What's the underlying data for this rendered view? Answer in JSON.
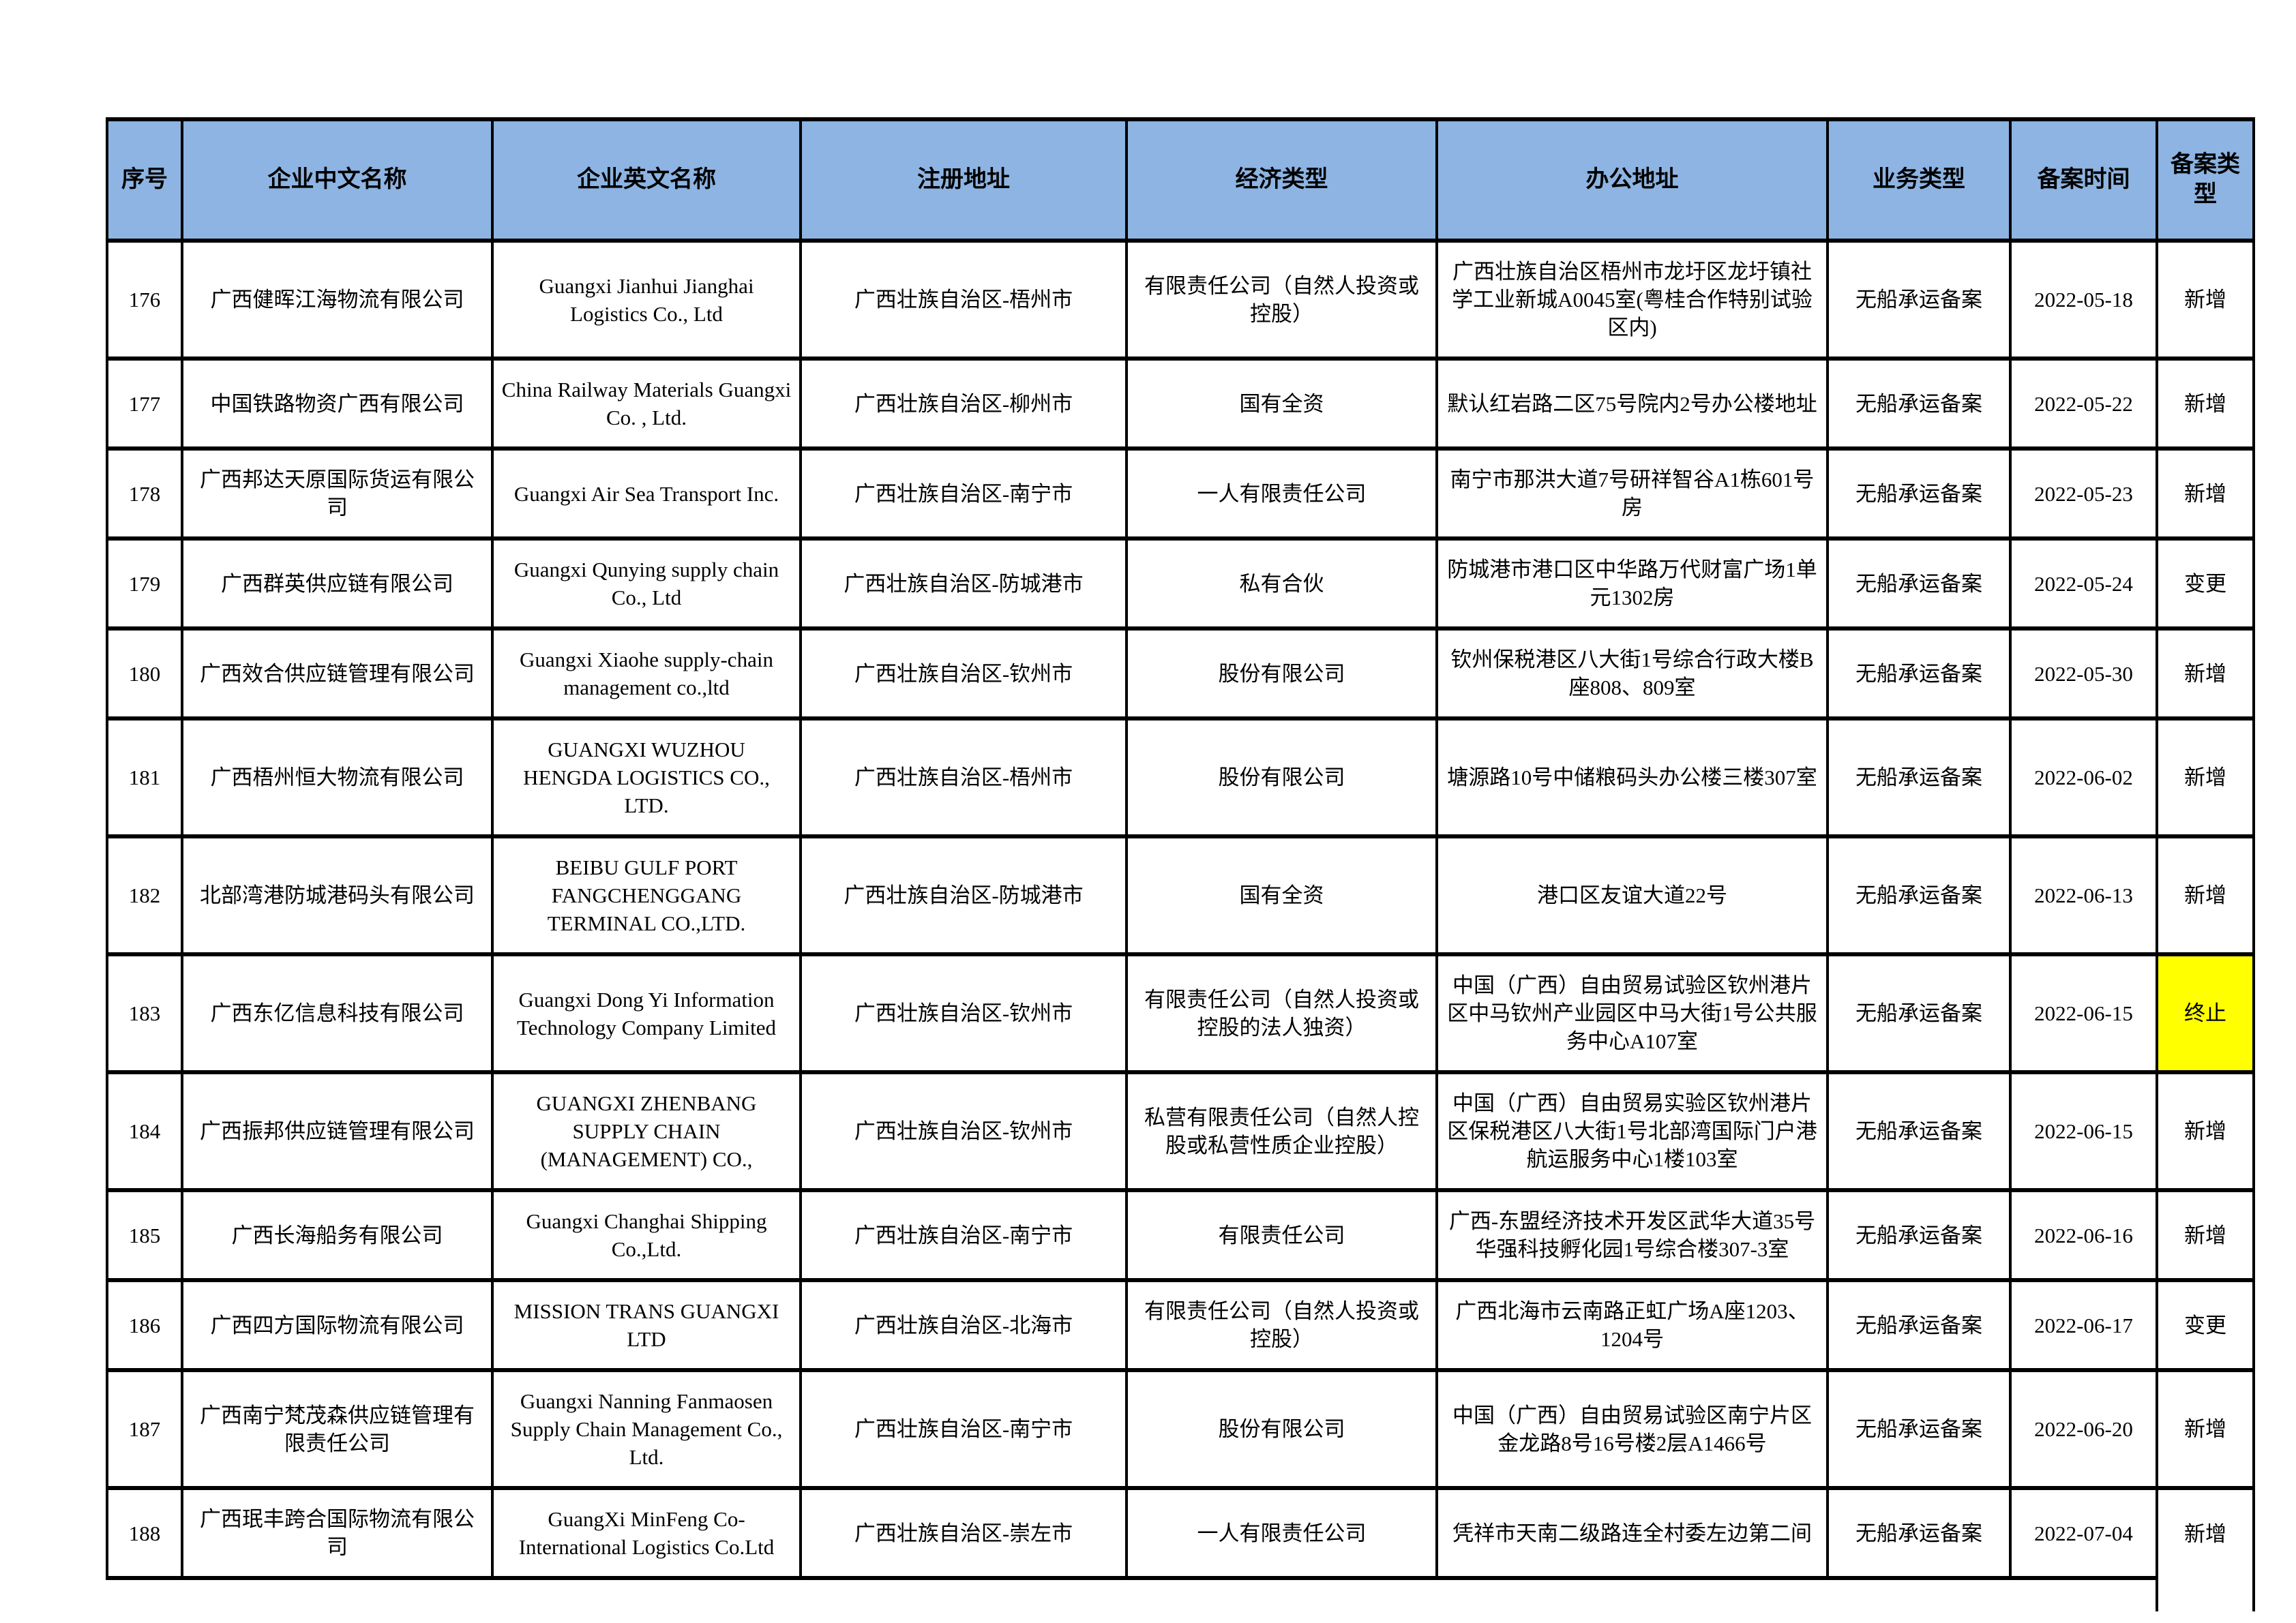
{
  "table": {
    "header_bg": "#8db4e2",
    "highlight_bg": "#ffff00",
    "columns": [
      "序号",
      "企业中文名称",
      "企业英文名称",
      "注册地址",
      "经济类型",
      "办公地址",
      "业务类型",
      "备案时间",
      "备案类型"
    ],
    "rows": [
      {
        "no": "176",
        "name_cn": "广西健晖江海物流有限公司",
        "name_en": "Guangxi Jianhui Jianghai Logistics Co., Ltd",
        "reg_address": "广西壮族自治区-梧州市",
        "econ_type": "有限责任公司（自然人投资或控股）",
        "office_address": "广西壮族自治区梧州市龙圩区龙圩镇社学工业新城A0045室(粤桂合作特别试验区内)",
        "biz_type": "无船承运备案",
        "filing_date": "2022-05-18",
        "filing_type": "新增",
        "highlight": false
      },
      {
        "no": "177",
        "name_cn": "中国铁路物资广西有限公司",
        "name_en": "China Railway Materials Guangxi Co. , Ltd.",
        "reg_address": "广西壮族自治区-柳州市",
        "econ_type": "国有全资",
        "office_address": "默认红岩路二区75号院内2号办公楼地址",
        "biz_type": "无船承运备案",
        "filing_date": "2022-05-22",
        "filing_type": "新增",
        "highlight": false
      },
      {
        "no": "178",
        "name_cn": "广西邦达天原国际货运有限公司",
        "name_en": "Guangxi Air Sea Transport Inc.",
        "reg_address": "广西壮族自治区-南宁市",
        "econ_type": "一人有限责任公司",
        "office_address": "南宁市那洪大道7号研祥智谷A1栋601号房",
        "biz_type": "无船承运备案",
        "filing_date": "2022-05-23",
        "filing_type": "新增",
        "highlight": false
      },
      {
        "no": "179",
        "name_cn": "广西群英供应链有限公司",
        "name_en": "Guangxi Qunying supply chain Co., Ltd",
        "reg_address": "广西壮族自治区-防城港市",
        "econ_type": "私有合伙",
        "office_address": "防城港市港口区中华路万代财富广场1单元1302房",
        "biz_type": "无船承运备案",
        "filing_date": "2022-05-24",
        "filing_type": "变更",
        "highlight": false
      },
      {
        "no": "180",
        "name_cn": "广西效合供应链管理有限公司",
        "name_en": "Guangxi Xiaohe supply-chain management co.,ltd",
        "reg_address": "广西壮族自治区-钦州市",
        "econ_type": "股份有限公司",
        "office_address": "钦州保税港区八大街1号综合行政大楼B座808、809室",
        "biz_type": "无船承运备案",
        "filing_date": "2022-05-30",
        "filing_type": "新增",
        "highlight": false
      },
      {
        "no": "181",
        "name_cn": "广西梧州恒大物流有限公司",
        "name_en": "GUANGXI WUZHOU HENGDA LOGISTICS CO., LTD.",
        "reg_address": "广西壮族自治区-梧州市",
        "econ_type": "股份有限公司",
        "office_address": "塘源路10号中储粮码头办公楼三楼307室",
        "biz_type": "无船承运备案",
        "filing_date": "2022-06-02",
        "filing_type": "新增",
        "highlight": false
      },
      {
        "no": "182",
        "name_cn": "北部湾港防城港码头有限公司",
        "name_en": "BEIBU GULF PORT FANGCHENGGANG TERMINAL CO.,LTD.",
        "reg_address": "广西壮族自治区-防城港市",
        "econ_type": "国有全资",
        "office_address": "港口区友谊大道22号",
        "biz_type": "无船承运备案",
        "filing_date": "2022-06-13",
        "filing_type": "新增",
        "highlight": false
      },
      {
        "no": "183",
        "name_cn": "广西东亿信息科技有限公司",
        "name_en": "Guangxi Dong Yi Information Technology Company Limited",
        "reg_address": "广西壮族自治区-钦州市",
        "econ_type": "有限责任公司（自然人投资或控股的法人独资）",
        "office_address": "中国（广西）自由贸易试验区钦州港片区中马钦州产业园区中马大街1号公共服务中心A107室",
        "biz_type": "无船承运备案",
        "filing_date": "2022-06-15",
        "filing_type": "终止",
        "highlight": true
      },
      {
        "no": "184",
        "name_cn": "广西振邦供应链管理有限公司",
        "name_en": "GUANGXI ZHENBANG SUPPLY CHAIN (MANAGEMENT) CO.,",
        "reg_address": "广西壮族自治区-钦州市",
        "econ_type": "私营有限责任公司（自然人控股或私营性质企业控股）",
        "office_address": "中国（广西）自由贸易实验区钦州港片区保税港区八大街1号北部湾国际门户港航运服务中心1楼103室",
        "biz_type": "无船承运备案",
        "filing_date": "2022-06-15",
        "filing_type": "新增",
        "highlight": false
      },
      {
        "no": "185",
        "name_cn": "广西长海船务有限公司",
        "name_en": "Guangxi Changhai Shipping Co.,Ltd.",
        "reg_address": "广西壮族自治区-南宁市",
        "econ_type": "有限责任公司",
        "office_address": "广西-东盟经济技术开发区武华大道35号华强科技孵化园1号综合楼307-3室",
        "biz_type": "无船承运备案",
        "filing_date": "2022-06-16",
        "filing_type": "新增",
        "highlight": false
      },
      {
        "no": "186",
        "name_cn": "广西四方国际物流有限公司",
        "name_en": "MISSION TRANS GUANGXI LTD",
        "reg_address": "广西壮族自治区-北海市",
        "econ_type": "有限责任公司（自然人投资或控股）",
        "office_address": "广西北海市云南路正虹广场A座1203、1204号",
        "biz_type": "无船承运备案",
        "filing_date": "2022-06-17",
        "filing_type": "变更",
        "highlight": false
      },
      {
        "no": "187",
        "name_cn": "广西南宁梵茂森供应链管理有限责任公司",
        "name_en": "Guangxi Nanning Fanmaosen Supply Chain Management Co., Ltd.",
        "reg_address": "广西壮族自治区-南宁市",
        "econ_type": "股份有限公司",
        "office_address": "中国（广西）自由贸易试验区南宁片区金龙路8号16号楼2层A1466号",
        "biz_type": "无船承运备案",
        "filing_date": "2022-06-20",
        "filing_type": "新增",
        "highlight": false
      },
      {
        "no": "188",
        "name_cn": "广西珉丰跨合国际物流有限公司",
        "name_en": "GuangXi MinFeng Co-International Logistics Co.Ltd",
        "reg_address": "广西壮族自治区-崇左市",
        "econ_type": "一人有限责任公司",
        "office_address": "凭祥市天南二级路连全村委左边第二间",
        "biz_type": "无船承运备案",
        "filing_date": "2022-07-04",
        "filing_type": "新增",
        "highlight": false
      }
    ]
  }
}
